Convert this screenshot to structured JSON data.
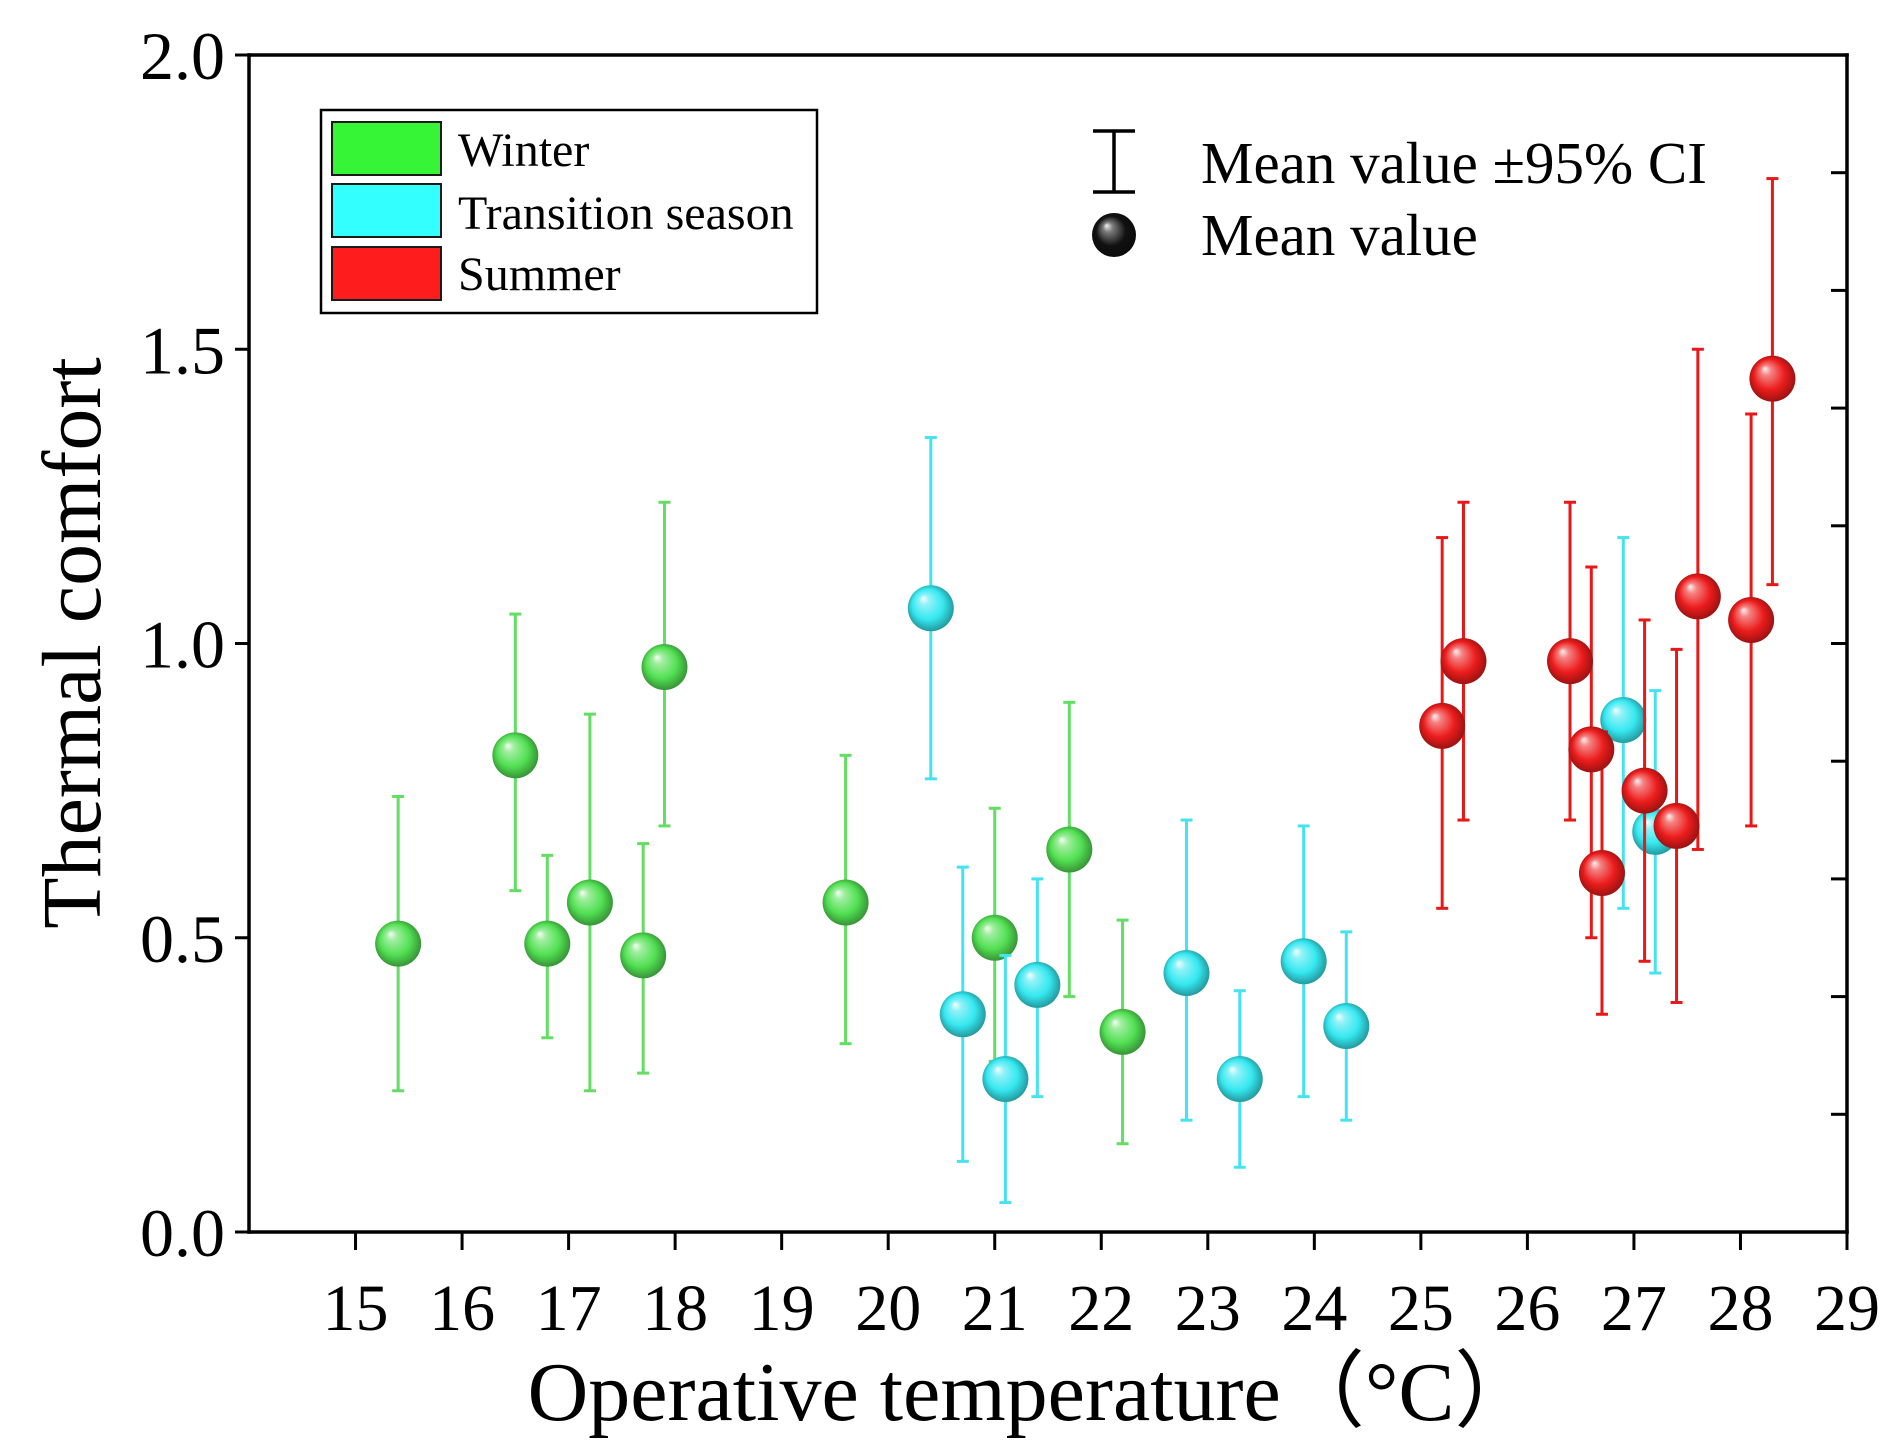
{
  "chart_data": {
    "type": "scatter",
    "title": "",
    "xlabel": "Operative temperature（°C）",
    "ylabel": "Thermal comfort",
    "xlim": [
      14,
      29
    ],
    "ylim": [
      0,
      2
    ],
    "xticks": [
      15,
      16,
      17,
      18,
      19,
      20,
      21,
      22,
      23,
      24,
      25,
      26,
      27,
      28,
      29
    ],
    "xtick_labels": [
      "15",
      "16",
      "17",
      "18",
      "19",
      "20",
      "21",
      "22",
      "23",
      "24",
      "25",
      "26",
      "27",
      "28",
      "29"
    ],
    "yticks": [
      0,
      0.5,
      1.0,
      1.5,
      2.0
    ],
    "ytick_labels": [
      "0.0",
      "0.5",
      "1.0",
      "1.5",
      "2.0"
    ],
    "right_axis_ticks": [
      0.2,
      0.4,
      0.6,
      0.8,
      1.0,
      1.2,
      1.4,
      1.6,
      1.8
    ],
    "grid": false,
    "legend_position": "top-left",
    "legend": [
      {
        "label": "Winter",
        "color": "#36f536"
      },
      {
        "label": "Transition season",
        "color": "#33ffff"
      },
      {
        "label": "Summer",
        "color": "#ff1c1c"
      }
    ],
    "annotation_legend": {
      "position": "top-right",
      "errorbar_label": "Mean value ±95% CI",
      "marker_label": "Mean value",
      "marker_color": "#111111"
    },
    "series": [
      {
        "name": "Winter",
        "color": "#52e052",
        "errorbar_color": "#63dd63",
        "points": [
          {
            "x": 15.4,
            "y": 0.49,
            "ci_low": 0.24,
            "ci_high": 0.74
          },
          {
            "x": 16.5,
            "y": 0.81,
            "ci_low": 0.58,
            "ci_high": 1.05
          },
          {
            "x": 16.8,
            "y": 0.49,
            "ci_low": 0.33,
            "ci_high": 0.64
          },
          {
            "x": 17.2,
            "y": 0.56,
            "ci_low": 0.24,
            "ci_high": 0.88
          },
          {
            "x": 17.7,
            "y": 0.47,
            "ci_low": 0.27,
            "ci_high": 0.66
          },
          {
            "x": 17.9,
            "y": 0.96,
            "ci_low": 0.69,
            "ci_high": 1.24
          },
          {
            "x": 19.6,
            "y": 0.56,
            "ci_low": 0.32,
            "ci_high": 0.81
          },
          {
            "x": 21.0,
            "y": 0.5,
            "ci_low": 0.29,
            "ci_high": 0.72
          },
          {
            "x": 21.7,
            "y": 0.65,
            "ci_low": 0.4,
            "ci_high": 0.9
          },
          {
            "x": 22.2,
            "y": 0.34,
            "ci_low": 0.15,
            "ci_high": 0.53
          }
        ]
      },
      {
        "name": "Transition season",
        "color": "#35e8f0",
        "errorbar_color": "#45e3ef",
        "points": [
          {
            "x": 20.4,
            "y": 1.06,
            "ci_low": 0.77,
            "ci_high": 1.35
          },
          {
            "x": 20.7,
            "y": 0.37,
            "ci_low": 0.12,
            "ci_high": 0.62
          },
          {
            "x": 21.1,
            "y": 0.26,
            "ci_low": 0.05,
            "ci_high": 0.47
          },
          {
            "x": 21.4,
            "y": 0.42,
            "ci_low": 0.23,
            "ci_high": 0.6
          },
          {
            "x": 22.8,
            "y": 0.44,
            "ci_low": 0.19,
            "ci_high": 0.7
          },
          {
            "x": 23.3,
            "y": 0.26,
            "ci_low": 0.11,
            "ci_high": 0.41
          },
          {
            "x": 23.9,
            "y": 0.46,
            "ci_low": 0.23,
            "ci_high": 0.69
          },
          {
            "x": 24.3,
            "y": 0.35,
            "ci_low": 0.19,
            "ci_high": 0.51
          },
          {
            "x": 26.9,
            "y": 0.87,
            "ci_low": 0.55,
            "ci_high": 1.18
          },
          {
            "x": 27.2,
            "y": 0.68,
            "ci_low": 0.44,
            "ci_high": 0.92
          }
        ]
      },
      {
        "name": "Summer",
        "color": "#ec1c1c",
        "errorbar_color": "#e81818",
        "points": [
          {
            "x": 25.2,
            "y": 0.86,
            "ci_low": 0.55,
            "ci_high": 1.18
          },
          {
            "x": 25.4,
            "y": 0.97,
            "ci_low": 0.7,
            "ci_high": 1.24
          },
          {
            "x": 26.4,
            "y": 0.97,
            "ci_low": 0.7,
            "ci_high": 1.24
          },
          {
            "x": 26.6,
            "y": 0.82,
            "ci_low": 0.5,
            "ci_high": 1.13
          },
          {
            "x": 26.7,
            "y": 0.61,
            "ci_low": 0.37,
            "ci_high": 0.85
          },
          {
            "x": 27.1,
            "y": 0.75,
            "ci_low": 0.46,
            "ci_high": 1.04
          },
          {
            "x": 27.4,
            "y": 0.69,
            "ci_low": 0.39,
            "ci_high": 0.99
          },
          {
            "x": 27.6,
            "y": 1.08,
            "ci_low": 0.65,
            "ci_high": 1.5
          },
          {
            "x": 28.1,
            "y": 1.04,
            "ci_low": 0.69,
            "ci_high": 1.39
          },
          {
            "x": 28.3,
            "y": 1.45,
            "ci_low": 1.1,
            "ci_high": 1.79
          }
        ]
      }
    ]
  }
}
